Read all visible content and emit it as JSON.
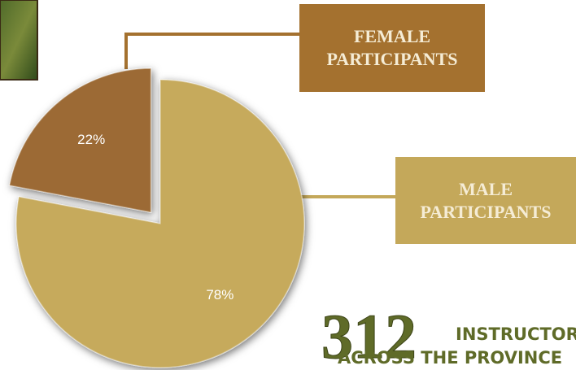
{
  "chart_data": {
    "type": "pie",
    "categories": [
      "FEMALE PARTICIPANTS",
      "MALE PARTICIPANTS"
    ],
    "values": [
      22,
      78
    ],
    "value_labels": [
      "22%",
      "78%"
    ],
    "colors": [
      "#9c6a34",
      "#c6aa5c"
    ],
    "exploded": [
      true,
      false
    ],
    "annotation": {
      "number": "312",
      "line1": "INSTRUCTORS",
      "line2": "ACROSS THE PROVINCE"
    }
  }
}
